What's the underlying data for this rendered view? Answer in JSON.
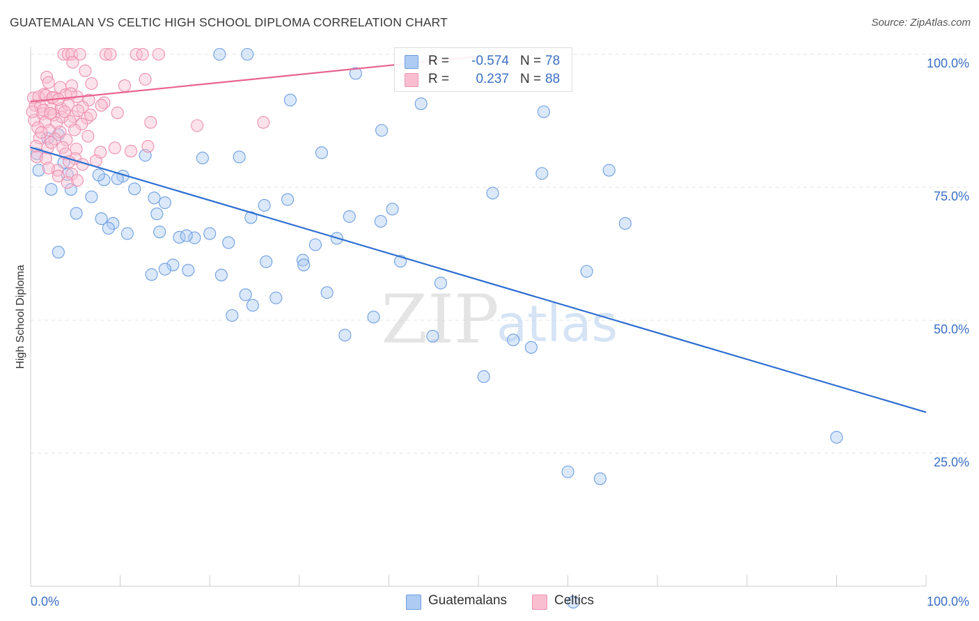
{
  "title": "GUATEMALAN VS CELTIC HIGH SCHOOL DIPLOMA CORRELATION CHART",
  "source": "Source: ZipAtlas.com",
  "watermark": {
    "zip": "ZIP",
    "atlas": "atlas"
  },
  "legend": {
    "r_label": "R =",
    "n_label": "N =",
    "rows": [
      {
        "r": "-0.574",
        "n": "78",
        "color": "#aecbf3",
        "border": "#6f9ee0"
      },
      {
        "r": "0.237",
        "n": "88",
        "color": "#f9bfd1",
        "border": "#ee8fb0"
      }
    ]
  },
  "bottom_legend": [
    {
      "label": "Guatemalans",
      "color": "#aecbf3",
      "border": "#6f9ee0"
    },
    {
      "label": "Celtics",
      "color": "#f9bfd1",
      "border": "#ee8fb0"
    }
  ],
  "chart_data": {
    "type": "scatter",
    "title": "GUATEMALAN VS CELTIC HIGH SCHOOL DIPLOMA CORRELATION CHART",
    "xlabel": "",
    "ylabel": "High School Diploma",
    "xlim": [
      0,
      100
    ],
    "ylim": [
      0,
      100
    ],
    "x_tick_labels": [
      {
        "value": 0,
        "label": "0.0%"
      },
      {
        "value": 100,
        "label": "100.0%"
      }
    ],
    "y_tick_labels": [
      {
        "value": 100,
        "label": "100.0%"
      },
      {
        "value": 75,
        "label": "75.0%"
      },
      {
        "value": 50,
        "label": "50.0%"
      },
      {
        "value": 25,
        "label": "25.0%"
      }
    ],
    "series": [
      {
        "name": "Guatemalans",
        "color": "#6f9ee0",
        "fill": "#aecbf3",
        "line_color": "#2e6fd1",
        "trend": {
          "x": [
            0,
            100
          ],
          "y": [
            82.5,
            32.7
          ]
        },
        "points": [
          [
            21.1,
            100
          ],
          [
            24.2,
            100
          ],
          [
            36.3,
            96.4
          ],
          [
            43.6,
            90.7
          ],
          [
            57.3,
            89.2
          ],
          [
            39.2,
            85.7
          ],
          [
            29.0,
            91.4
          ],
          [
            19.2,
            80.5
          ],
          [
            32.5,
            81.5
          ],
          [
            23.3,
            80.7
          ],
          [
            3.1,
            84.9
          ],
          [
            1.9,
            84.2
          ],
          [
            0.7,
            81.3
          ],
          [
            0.9,
            78.2
          ],
          [
            3.7,
            79.7
          ],
          [
            12.8,
            81.0
          ],
          [
            10.3,
            77.1
          ],
          [
            8.2,
            76.4
          ],
          [
            7.6,
            77.3
          ],
          [
            4.1,
            77.4
          ],
          [
            2.3,
            74.6
          ],
          [
            5.1,
            70.1
          ],
          [
            4.5,
            74.6
          ],
          [
            6.8,
            73.2
          ],
          [
            9.7,
            76.6
          ],
          [
            11.6,
            74.7
          ],
          [
            13.8,
            73.0
          ],
          [
            15.0,
            72.1
          ],
          [
            14.1,
            70.0
          ],
          [
            16.6,
            65.6
          ],
          [
            7.9,
            69.1
          ],
          [
            9.2,
            68.2
          ],
          [
            10.8,
            66.3
          ],
          [
            8.7,
            67.3
          ],
          [
            14.4,
            66.6
          ],
          [
            18.3,
            65.5
          ],
          [
            17.4,
            65.9
          ],
          [
            20.0,
            66.3
          ],
          [
            22.1,
            64.6
          ],
          [
            24.6,
            69.3
          ],
          [
            26.1,
            71.6
          ],
          [
            28.7,
            72.7
          ],
          [
            31.8,
            64.2
          ],
          [
            34.2,
            65.4
          ],
          [
            39.1,
            68.6
          ],
          [
            40.4,
            70.9
          ],
          [
            51.6,
            73.9
          ],
          [
            57.1,
            77.6
          ],
          [
            64.6,
            78.2
          ],
          [
            66.4,
            68.2
          ],
          [
            62.1,
            59.2
          ],
          [
            53.9,
            46.3
          ],
          [
            50.6,
            39.4
          ],
          [
            41.3,
            61.1
          ],
          [
            35.6,
            69.5
          ],
          [
            30.4,
            61.3
          ],
          [
            26.3,
            61.0
          ],
          [
            21.3,
            58.5
          ],
          [
            15.9,
            60.4
          ],
          [
            13.5,
            58.6
          ],
          [
            15.0,
            59.6
          ],
          [
            17.6,
            59.4
          ],
          [
            24.0,
            54.8
          ],
          [
            27.4,
            54.2
          ],
          [
            30.5,
            60.4
          ],
          [
            33.1,
            55.2
          ],
          [
            35.1,
            47.2
          ],
          [
            38.3,
            50.6
          ],
          [
            24.8,
            52.8
          ],
          [
            22.5,
            50.9
          ],
          [
            45.8,
            57.0
          ],
          [
            44.9,
            47.0
          ],
          [
            55.9,
            44.9
          ],
          [
            60.0,
            21.5
          ],
          [
            63.6,
            20.2
          ],
          [
            60.6,
            -3.0
          ],
          [
            90.0,
            28.0
          ],
          [
            3.1,
            62.8
          ]
        ]
      },
      {
        "name": "Celtics",
        "color": "#ee8fb0",
        "fill": "#f9bfd1",
        "line_color": "#e8648f",
        "trend": {
          "x": [
            0,
            50
          ],
          "y": [
            91.1,
            99.6
          ]
        },
        "points": [
          [
            3.7,
            100
          ],
          [
            4.2,
            100
          ],
          [
            4.6,
            100
          ],
          [
            5.5,
            100
          ],
          [
            8.4,
            100
          ],
          [
            8.9,
            100
          ],
          [
            11.8,
            100
          ],
          [
            12.5,
            100
          ],
          [
            14.3,
            100
          ],
          [
            4.7,
            98.5
          ],
          [
            6.1,
            96.9
          ],
          [
            1.8,
            95.7
          ],
          [
            2.0,
            94.7
          ],
          [
            3.3,
            93.8
          ],
          [
            4.6,
            94.1
          ],
          [
            6.8,
            94.5
          ],
          [
            10.5,
            94.1
          ],
          [
            12.8,
            95.3
          ],
          [
            1.5,
            92.5
          ],
          [
            2.4,
            91.8
          ],
          [
            3.9,
            92.4
          ],
          [
            5.2,
            92.0
          ],
          [
            6.5,
            91.4
          ],
          [
            8.2,
            90.9
          ],
          [
            0.5,
            90.4
          ],
          [
            1.1,
            90.2
          ],
          [
            2.3,
            89.7
          ],
          [
            3.4,
            89.8
          ],
          [
            4.2,
            90.5
          ],
          [
            5.8,
            90.1
          ],
          [
            7.9,
            90.4
          ],
          [
            1.3,
            88.8
          ],
          [
            2.6,
            88.6
          ],
          [
            3.5,
            88.2
          ],
          [
            4.8,
            88.3
          ],
          [
            6.3,
            88.0
          ],
          [
            0.4,
            87.6
          ],
          [
            1.6,
            87.2
          ],
          [
            2.9,
            87.1
          ],
          [
            4.4,
            87.4
          ],
          [
            5.7,
            86.9
          ],
          [
            0.8,
            86.2
          ],
          [
            2.1,
            85.7
          ],
          [
            3.3,
            85.4
          ],
          [
            4.9,
            85.8
          ],
          [
            6.4,
            84.6
          ],
          [
            1.0,
            84.3
          ],
          [
            2.7,
            84.1
          ],
          [
            4.0,
            83.9
          ],
          [
            0.6,
            82.7
          ],
          [
            1.9,
            82.4
          ],
          [
            3.6,
            82.5
          ],
          [
            5.1,
            82.2
          ],
          [
            0.3,
            91.8
          ],
          [
            0.9,
            92.0
          ],
          [
            1.7,
            92.3
          ],
          [
            2.5,
            91.9
          ],
          [
            3.1,
            91.5
          ],
          [
            4.5,
            92.6
          ],
          [
            0.2,
            89.2
          ],
          [
            1.4,
            89.5
          ],
          [
            2.2,
            88.9
          ],
          [
            3.8,
            89.2
          ],
          [
            5.3,
            89.4
          ],
          [
            6.7,
            88.6
          ],
          [
            9.7,
            89.0
          ],
          [
            13.4,
            87.2
          ],
          [
            18.6,
            86.6
          ],
          [
            26.0,
            87.2
          ],
          [
            1.2,
            85.3
          ],
          [
            2.3,
            83.4
          ],
          [
            3.9,
            81.3
          ],
          [
            5.0,
            80.4
          ],
          [
            7.3,
            80.0
          ],
          [
            7.8,
            81.6
          ],
          [
            9.4,
            82.4
          ],
          [
            11.2,
            81.8
          ],
          [
            13.1,
            82.7
          ],
          [
            4.3,
            79.8
          ],
          [
            5.8,
            79.3
          ],
          [
            3.0,
            78.2
          ],
          [
            4.6,
            77.5
          ],
          [
            5.2,
            76.3
          ],
          [
            0.7,
            80.7
          ],
          [
            1.7,
            80.4
          ],
          [
            2.0,
            78.6
          ],
          [
            3.1,
            77.1
          ],
          [
            4.1,
            75.9
          ]
        ]
      }
    ]
  }
}
